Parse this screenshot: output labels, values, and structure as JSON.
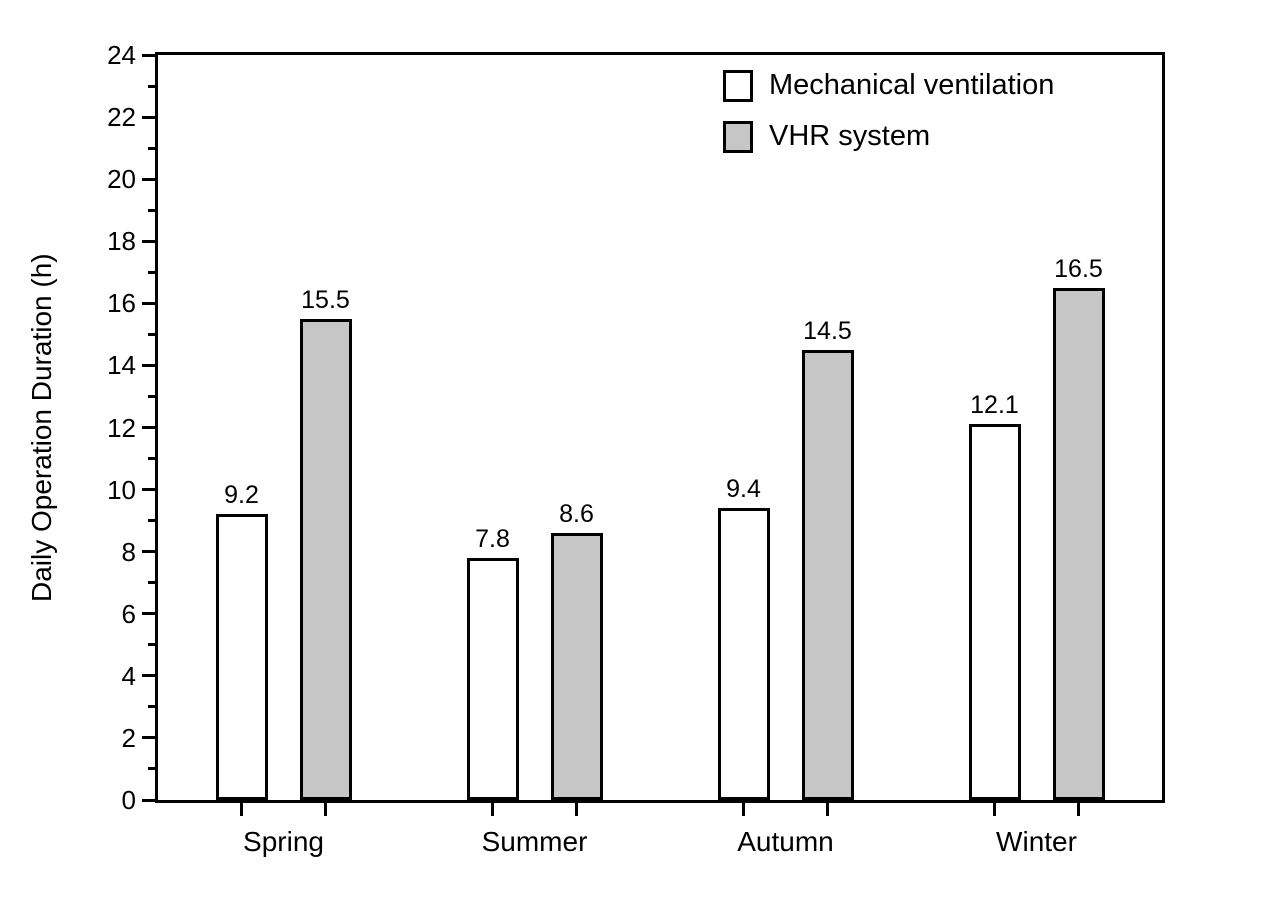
{
  "chart_data": {
    "type": "bar",
    "title": "",
    "categories": [
      "Spring",
      "Summer",
      "Autumn",
      "Winter"
    ],
    "series": [
      {
        "name": "Mechanical ventilation",
        "color": "#ffffff",
        "values": [
          9.2,
          7.8,
          9.4,
          12.1
        ]
      },
      {
        "name": "VHR system",
        "color": "#c6c6c6",
        "values": [
          15.5,
          8.6,
          14.5,
          16.5
        ]
      }
    ],
    "xlabel": "",
    "ylabel": "Daily Operation Duration (h)",
    "ylim": [
      0,
      24
    ],
    "y_major_step": 2,
    "y_minor_step": 1,
    "grid": false,
    "legend_position": "top-right-inside",
    "bar_border_color": "#000000",
    "axis_color": "#000000",
    "background": "#ffffff",
    "value_label_decimals": 1
  }
}
